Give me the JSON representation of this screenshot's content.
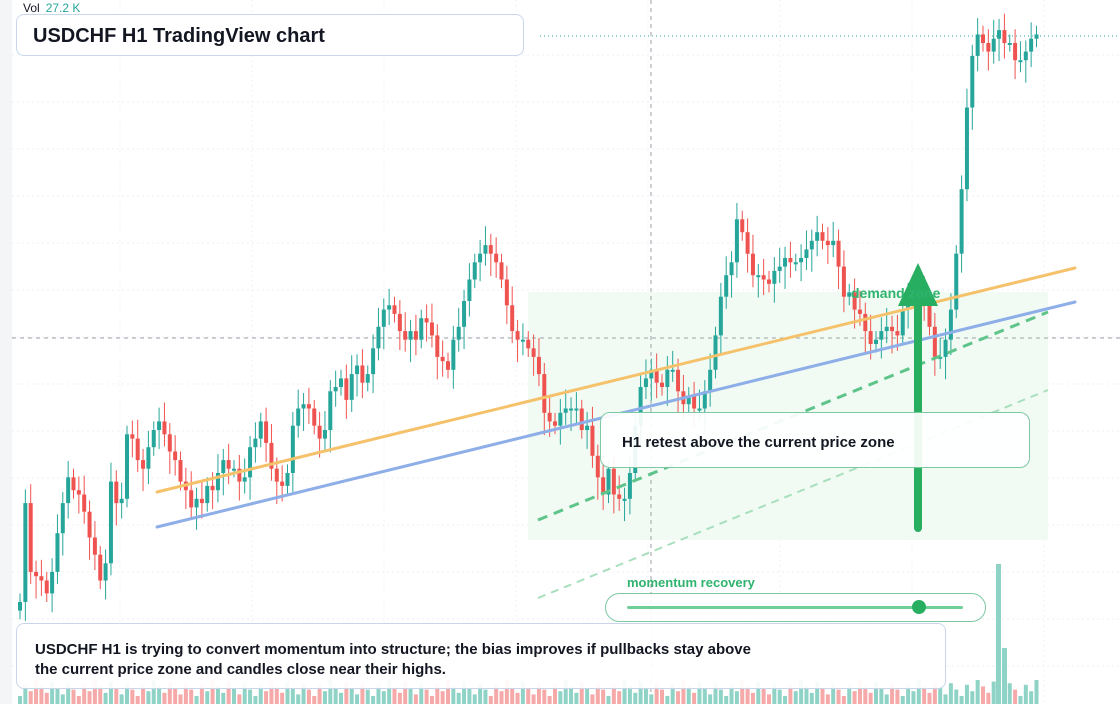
{
  "header": {
    "title": "USDCHF H1 TradingView chart"
  },
  "volume_readout": {
    "label": "Vol",
    "value": "27.2 K"
  },
  "annotations": {
    "callout": "H1 retest above the current price zone",
    "zone_label": "demand zone",
    "momentum_label": "momentum recovery",
    "summary": "USDCHF H1 is trying to convert momentum into structure; the bias improves if pullbacks stay above the current price zone and candles close near their highs."
  },
  "momentum_slider": {
    "level": 0.87
  },
  "colors": {
    "up_candle": "#26a69a",
    "down_candle": "#ef5350",
    "up_volume": "#8fd3c6",
    "down_volume": "#f5a9a8",
    "yellow_trendline": "#f5c26b",
    "blue_trendline": "#8eaee8",
    "green_accent": "#27ae60",
    "zone_fill": "#eefaf1"
  },
  "chart_data": {
    "type": "candlestick",
    "close_path": [
      0.1,
      0.33,
      0.17,
      0.16,
      0.15,
      0.12,
      0.17,
      0.26,
      0.33,
      0.39,
      0.36,
      0.35,
      0.31,
      0.25,
      0.21,
      0.15,
      0.19,
      0.38,
      0.33,
      0.34,
      0.49,
      0.48,
      0.43,
      0.41,
      0.46,
      0.5,
      0.52,
      0.49,
      0.45,
      0.43,
      0.38,
      0.36,
      0.32,
      0.34,
      0.33,
      0.37,
      0.36,
      0.4,
      0.43,
      0.41,
      0.41,
      0.38,
      0.39,
      0.46,
      0.48,
      0.52,
      0.47,
      0.41,
      0.38,
      0.37,
      0.4,
      0.51,
      0.55,
      0.56,
      0.55,
      0.51,
      0.48,
      0.5,
      0.59,
      0.6,
      0.62,
      0.57,
      0.63,
      0.65,
      0.61,
      0.63,
      0.69,
      0.74,
      0.78,
      0.79,
      0.77,
      0.73,
      0.71,
      0.73,
      0.71,
      0.76,
      0.75,
      0.72,
      0.67,
      0.66,
      0.64,
      0.71,
      0.74,
      0.8,
      0.85,
      0.89,
      0.91,
      0.93,
      0.91,
      0.89,
      0.85,
      0.79,
      0.73,
      0.71,
      0.71,
      0.69,
      0.67,
      0.63,
      0.54,
      0.52,
      0.51,
      0.54,
      0.55,
      0.55,
      0.55,
      0.5,
      0.51,
      0.44,
      0.39,
      0.35,
      0.41,
      0.35,
      0.34,
      0.34,
      0.4,
      0.51,
      0.6,
      0.62,
      0.64,
      0.61,
      0.6,
      0.64,
      0.64,
      0.59,
      0.56,
      0.58,
      0.55,
      0.55,
      0.59,
      0.64,
      0.72,
      0.81,
      0.86,
      0.89,
      0.99,
      0.96,
      0.91,
      0.86,
      0.86,
      0.85,
      0.84,
      0.87,
      0.88,
      0.9,
      0.89,
      0.89,
      0.9,
      0.92,
      0.94,
      0.96,
      0.94,
      0.93,
      0.94,
      0.88,
      0.81,
      0.82,
      0.78,
      0.77,
      0.73,
      0.7,
      0.71,
      0.73,
      0.74,
      0.73,
      0.72,
      0.78,
      0.81,
      0.81,
      0.82,
      0.79,
      0.74,
      0.67,
      0.67,
      0.71,
      0.78,
      0.91,
      1.06,
      1.25,
      1.37,
      1.42,
      1.4,
      1.38,
      1.41,
      1.43,
      1.4,
      1.4,
      1.36,
      1.36,
      1.38,
      1.41,
      1.42
    ]
  }
}
